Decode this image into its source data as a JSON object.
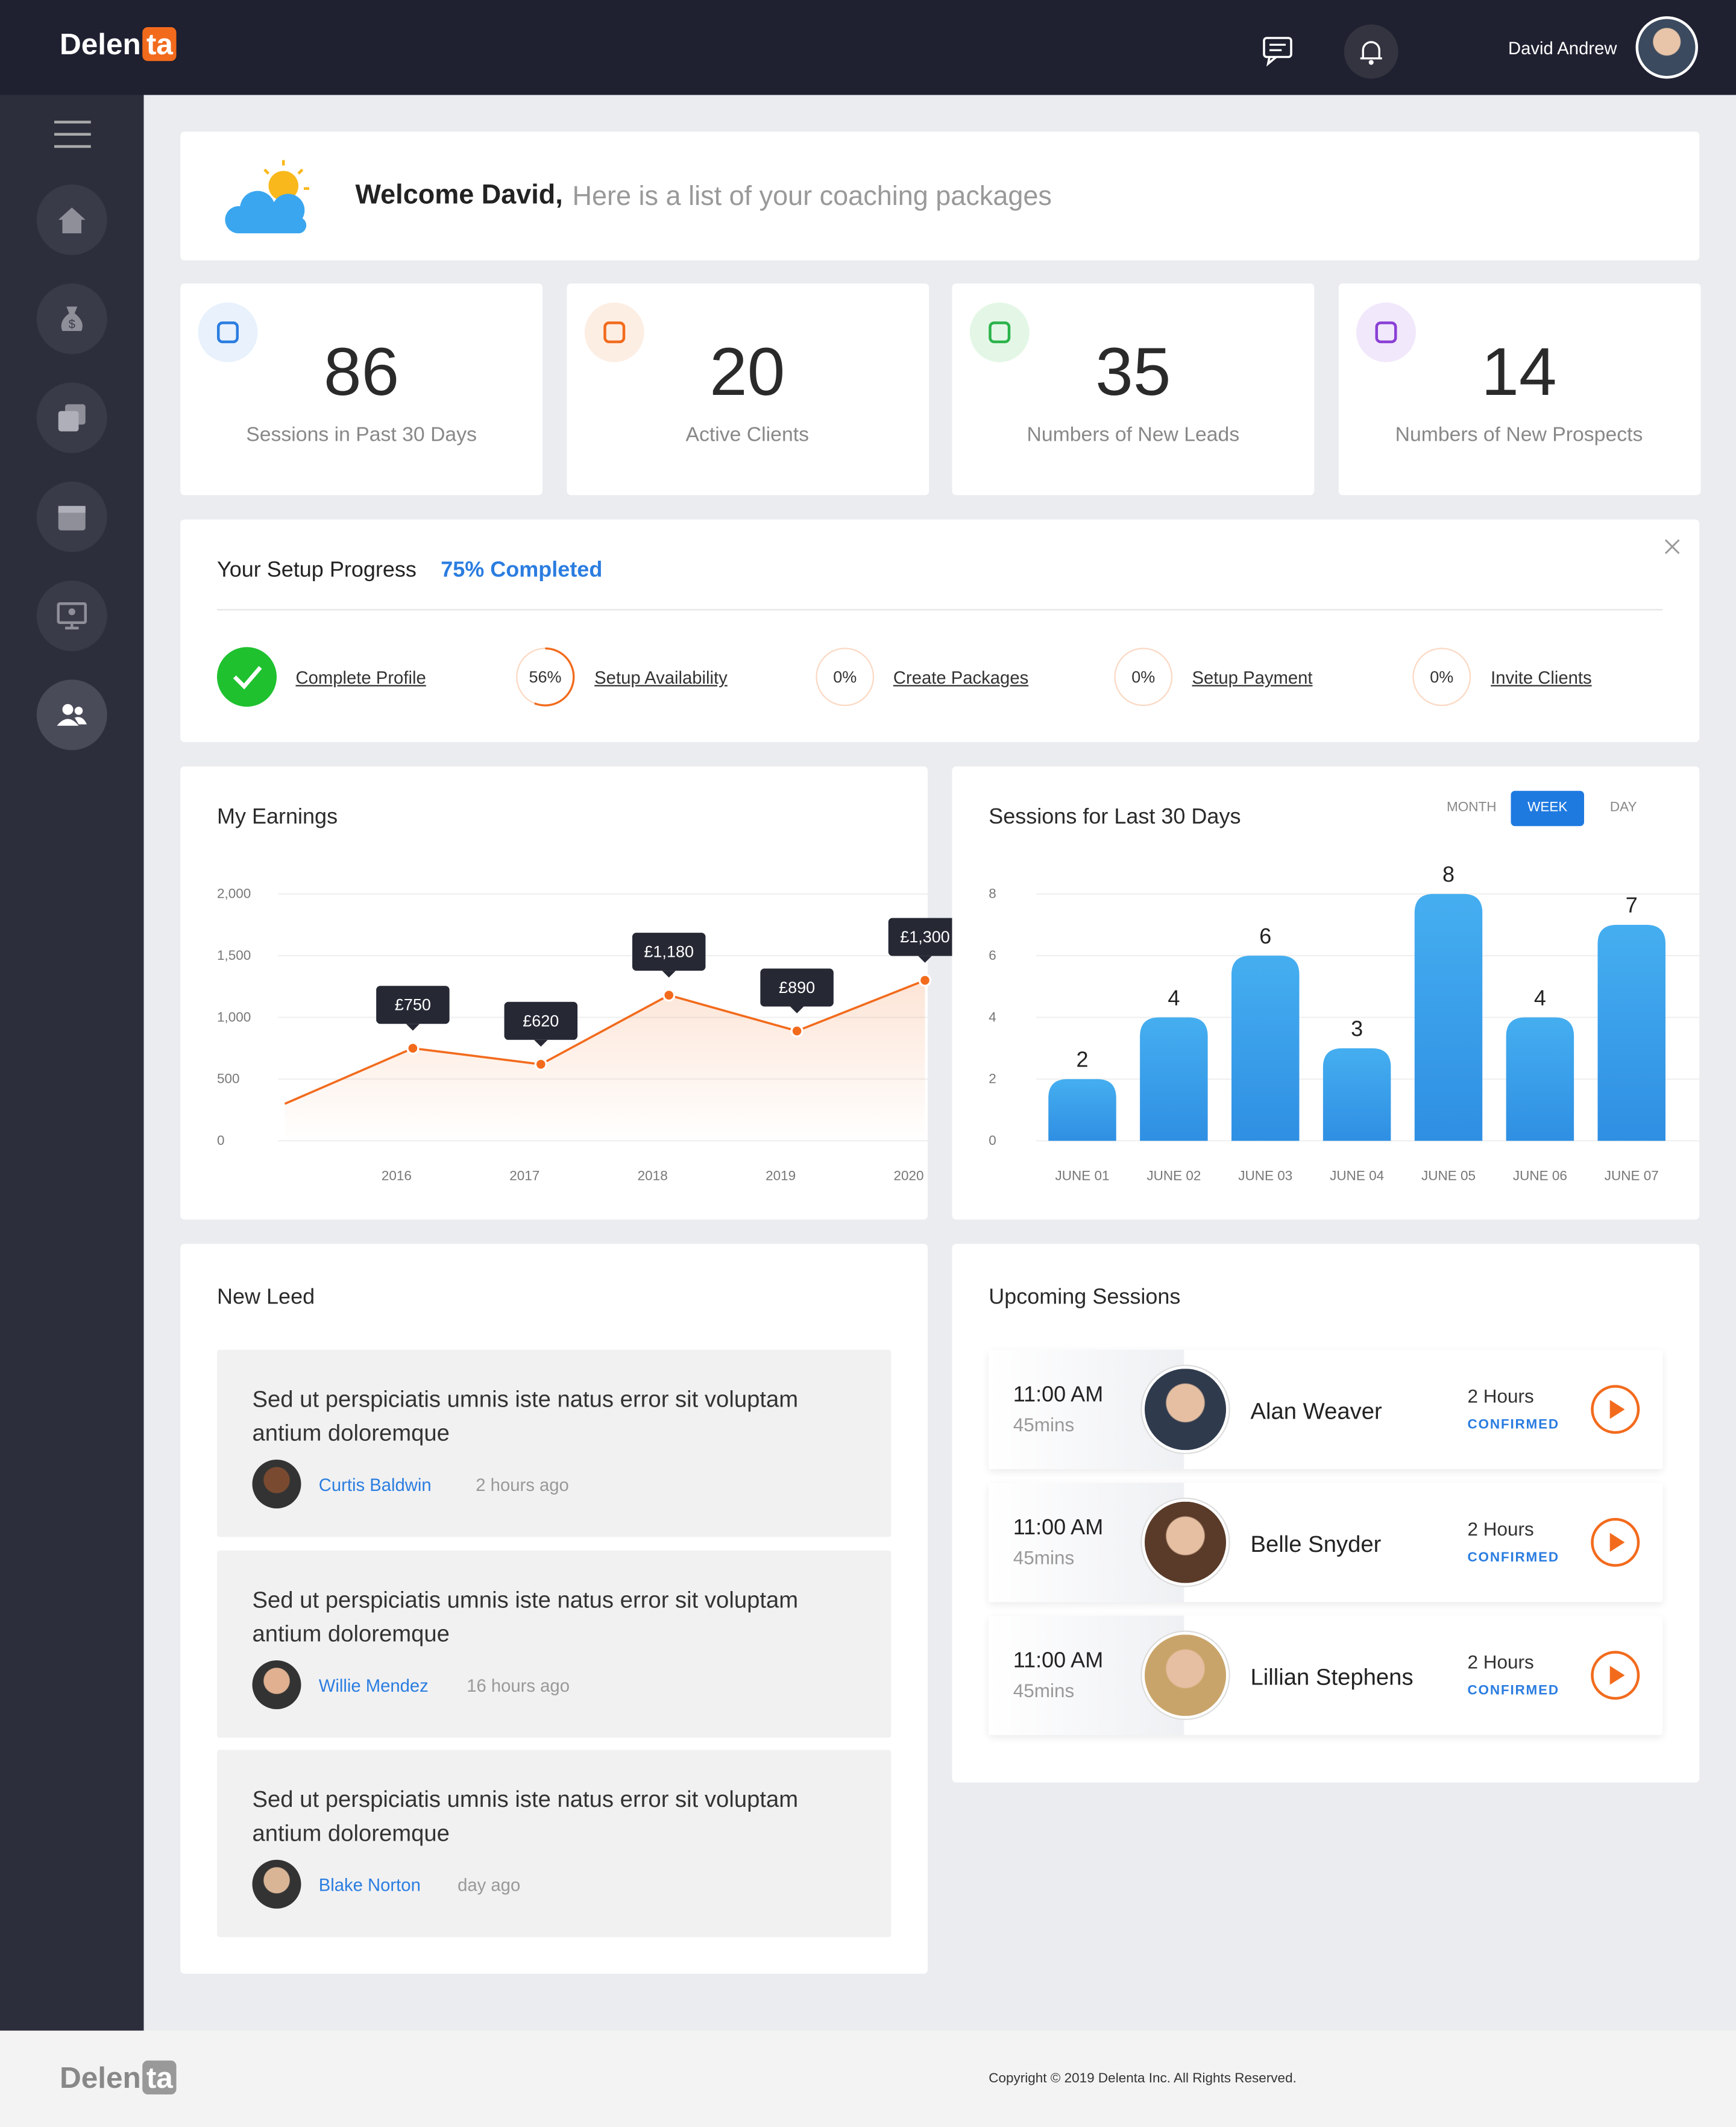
{
  "header": {
    "logo": "Delen",
    "logo_tag": "ta",
    "user": "David Andrew"
  },
  "welcome": {
    "greeting": "Welcome David,",
    "message": "Here is a list of your coaching packages"
  },
  "stats": [
    {
      "value": 86,
      "label": "Sessions in Past 30 Days"
    },
    {
      "value": 20,
      "label": "Active Clients"
    },
    {
      "value": 35,
      "label": "Numbers of New Leads"
    },
    {
      "value": 14,
      "label": "Numbers of New Prospects"
    }
  ],
  "setup": {
    "title": "Your Setup Progress",
    "status": "75% Completed",
    "steps": [
      {
        "label": "Complete Profile"
      },
      {
        "progress": "56%",
        "label": "Setup Availability"
      },
      {
        "progress": "0%",
        "label": "Create Packages"
      },
      {
        "progress": "0%",
        "label": "Setup Payment"
      },
      {
        "progress": "0%",
        "label": "Invite Clients"
      }
    ]
  },
  "chart_data": [
    {
      "type": "line",
      "title": "My Earnings",
      "categories": [
        null,
        "2016",
        "2017",
        "2018",
        "2019",
        "2020"
      ],
      "values": [
        300,
        750,
        620,
        1180,
        890,
        1300
      ],
      "value_labels": [
        null,
        "£750",
        "£620",
        "£1,180",
        "£890",
        "£1,300"
      ],
      "color": "#f26b1d",
      "ylim": [
        0,
        2000
      ],
      "yticks": [
        0,
        500,
        {
          "value": 1000,
          "label": "1,000"
        },
        {
          "value": 1500,
          "label": "1,500"
        },
        {
          "value": 2000,
          "label": "2,000"
        }
      ],
      "grid": true
    },
    {
      "type": "bar",
      "title": "Sessions for Last 30 Days",
      "tabs": [
        "MONTH",
        "WEEK",
        "DAY"
      ],
      "active_tab": 1,
      "categories": [
        "JUNE 01",
        "JUNE 02",
        "JUNE 03",
        "JUNE 04",
        "JUNE 05",
        "JUNE 06",
        "JUNE 07"
      ],
      "values": [
        2,
        4,
        6,
        3,
        8,
        4,
        7
      ],
      "color": "#2f8fe3",
      "ylim": [
        0,
        8
      ],
      "yticks": [
        0,
        2,
        4,
        6,
        8
      ],
      "grid": true
    }
  ],
  "leads": {
    "title": "New Leed",
    "items": [
      {
        "text": "Sed ut perspiciatis umnis iste natus error sit voluptam antium doloremque",
        "name": "Curtis Baldwin",
        "time": "2 hours ago"
      },
      {
        "text": "Sed ut perspiciatis umnis iste natus error sit voluptam antium doloremque",
        "name": "Willie Mendez",
        "time": "16 hours ago"
      },
      {
        "text": "Sed ut perspiciatis umnis iste natus error sit voluptam antium doloremque",
        "name": "Blake Norton",
        "time": "day ago"
      }
    ]
  },
  "sessions": {
    "title": "Upcoming Sessions",
    "items": [
      {
        "time": "11:00 AM",
        "duration": "45mins",
        "name": "Alan Weaver",
        "length": "2 Hours",
        "status": "CONFIRMED"
      },
      {
        "time": "11:00 AM",
        "duration": "45mins",
        "name": "Belle Snyder",
        "length": "2 Hours",
        "status": "CONFIRMED"
      },
      {
        "time": "11:00 AM",
        "duration": "45mins",
        "name": "Lillian Stephens",
        "length": "2 Hours",
        "status": "CONFIRMED"
      }
    ]
  },
  "footer": {
    "logo": "Delen",
    "logo_tag": "ta",
    "copyright": "Copyright © 2019 Delenta Inc. All Rights Reserved."
  }
}
